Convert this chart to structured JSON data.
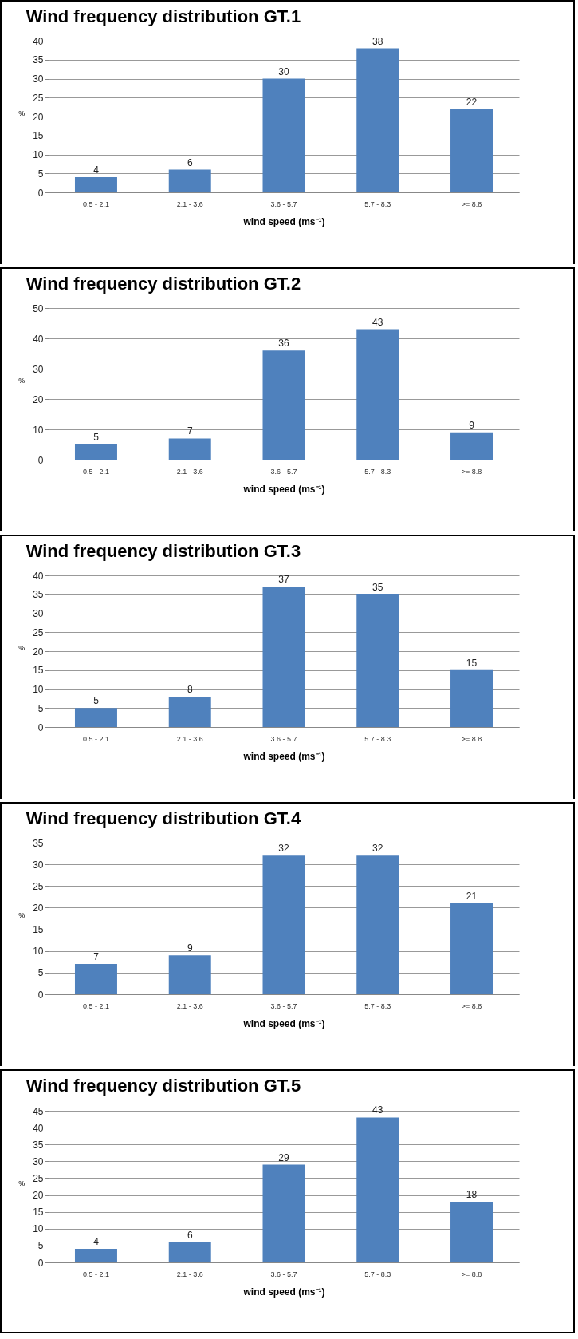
{
  "chart_data": [
    {
      "type": "bar",
      "title": "Wind frequency distribution GT.1",
      "xlabel": "wind speed (ms⁻¹)",
      "ylabel": "%",
      "categories": [
        "0.5 - 2.1",
        "2.1 - 3.6",
        "3.6 - 5.7",
        "5.7 - 8.3",
        ">= 8.8"
      ],
      "values": [
        4,
        6,
        30,
        38,
        22
      ],
      "color": "#4f81bd",
      "ylim": [
        0,
        40
      ],
      "yticks": [
        0,
        5,
        10,
        15,
        20,
        25,
        30,
        35,
        40
      ],
      "grid": "y",
      "data_labels": true
    },
    {
      "type": "bar",
      "title": "Wind frequency distribution GT.2",
      "xlabel": "wind speed (ms⁻¹)",
      "ylabel": "%",
      "categories": [
        "0.5 - 2.1",
        "2.1 - 3.6",
        "3.6 - 5.7",
        "5.7 - 8.3",
        ">= 8.8"
      ],
      "values": [
        5,
        7,
        36,
        43,
        9
      ],
      "color": "#4f81bd",
      "ylim": [
        0,
        50
      ],
      "yticks": [
        0,
        10,
        20,
        30,
        40,
        50
      ],
      "grid": "y",
      "data_labels": true
    },
    {
      "type": "bar",
      "title": "Wind frequency distribution GT.3",
      "xlabel": "wind speed (ms⁻¹)",
      "ylabel": "%",
      "categories": [
        "0.5 - 2.1",
        "2.1 - 3.6",
        "3.6 - 5.7",
        "5.7 - 8.3",
        ">= 8.8"
      ],
      "values": [
        5,
        8,
        37,
        35,
        15
      ],
      "color": "#4f81bd",
      "ylim": [
        0,
        40
      ],
      "yticks": [
        0,
        5,
        10,
        15,
        20,
        25,
        30,
        35,
        40
      ],
      "grid": "y",
      "data_labels": true
    },
    {
      "type": "bar",
      "title": "Wind frequency distribution GT.4",
      "xlabel": "wind speed (ms⁻¹)",
      "ylabel": "%",
      "categories": [
        "0.5 - 2.1",
        "2.1 - 3.6",
        "3.6 - 5.7",
        "5.7 - 8.3",
        ">= 8.8"
      ],
      "values": [
        7,
        9,
        32,
        32,
        21
      ],
      "color": "#4f81bd",
      "ylim": [
        0,
        35
      ],
      "yticks": [
        0,
        5,
        10,
        15,
        20,
        25,
        30,
        35
      ],
      "grid": "y",
      "data_labels": true
    },
    {
      "type": "bar",
      "title": "Wind frequency distribution GT.5",
      "xlabel": "wind speed (ms⁻¹)",
      "ylabel": "%",
      "categories": [
        "0.5 - 2.1",
        "2.1 - 3.6",
        "3.6 - 5.7",
        "5.7 - 8.3",
        ">= 8.8"
      ],
      "values": [
        4,
        6,
        29,
        43,
        18
      ],
      "color": "#4f81bd",
      "ylim": [
        0,
        45
      ],
      "yticks": [
        0,
        5,
        10,
        15,
        20,
        25,
        30,
        35,
        40,
        45
      ],
      "grid": "y",
      "data_labels": true
    }
  ]
}
